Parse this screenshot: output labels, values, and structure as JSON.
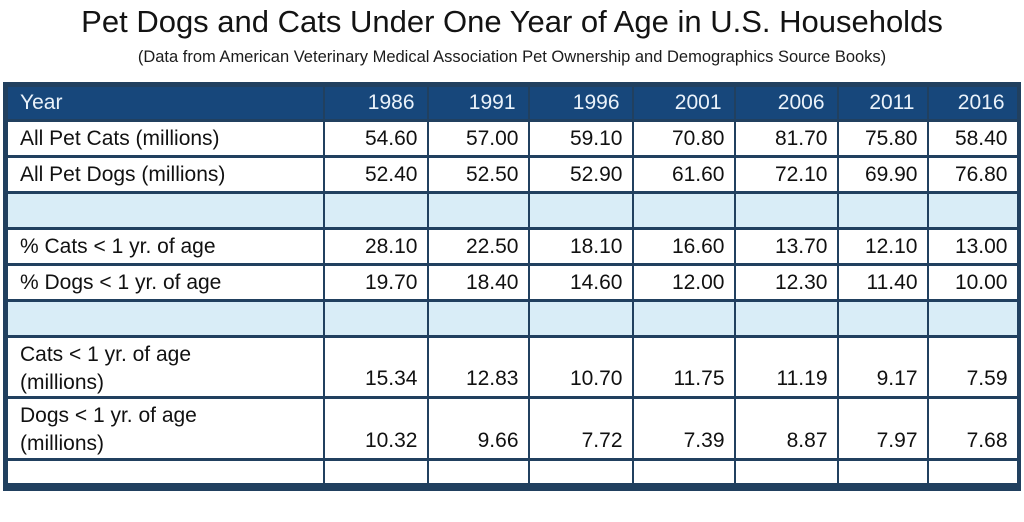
{
  "colors": {
    "header_bg": "#17477B",
    "header_text": "#EAF2FA",
    "border": "#21405F",
    "empty_row_bg": "#D9EDF7"
  },
  "chart_data": {
    "type": "table",
    "title": "Pet Dogs and Cats Under One Year of Age in U.S. Households",
    "subtitle": "(Data from American Veterinary Medical Association Pet Ownership and Demographics Source Books)",
    "columns": [
      "Year",
      "1986",
      "1991",
      "1996",
      "2001",
      "2006",
      "2011",
      "2016"
    ],
    "rows": [
      {
        "label": "All Pet Cats (millions)",
        "values": [
          "54.60",
          "57.00",
          "59.10",
          "70.80",
          "81.70",
          "75.80",
          "58.40"
        ]
      },
      {
        "label": "All Pet Dogs (millions)",
        "values": [
          "52.40",
          "52.50",
          "52.90",
          "61.60",
          "72.10",
          "69.90",
          "76.80"
        ]
      },
      {
        "label": "",
        "values": [
          "",
          "",
          "",
          "",
          "",
          "",
          ""
        ]
      },
      {
        "label": "% Cats < 1 yr. of age",
        "values": [
          "28.10",
          "22.50",
          "18.10",
          "16.60",
          "13.70",
          "12.10",
          "13.00"
        ]
      },
      {
        "label": "% Dogs < 1 yr. of age",
        "values": [
          "19.70",
          "18.40",
          "14.60",
          "12.00",
          "12.30",
          "11.40",
          "10.00"
        ]
      },
      {
        "label": "",
        "values": [
          "",
          "",
          "",
          "",
          "",
          "",
          ""
        ]
      },
      {
        "label": "Cats < 1 yr. of age\n(millions)",
        "values": [
          "15.34",
          "12.83",
          "10.70",
          "11.75",
          "11.19",
          "9.17",
          "7.59"
        ]
      },
      {
        "label": "Dogs < 1 yr. of age\n(millions)",
        "values": [
          "10.32",
          "9.66",
          "7.72",
          "7.39",
          "8.87",
          "7.97",
          "7.68"
        ]
      },
      {
        "label": "",
        "values": [
          "",
          "",
          "",
          "",
          "",
          "",
          ""
        ]
      }
    ]
  }
}
